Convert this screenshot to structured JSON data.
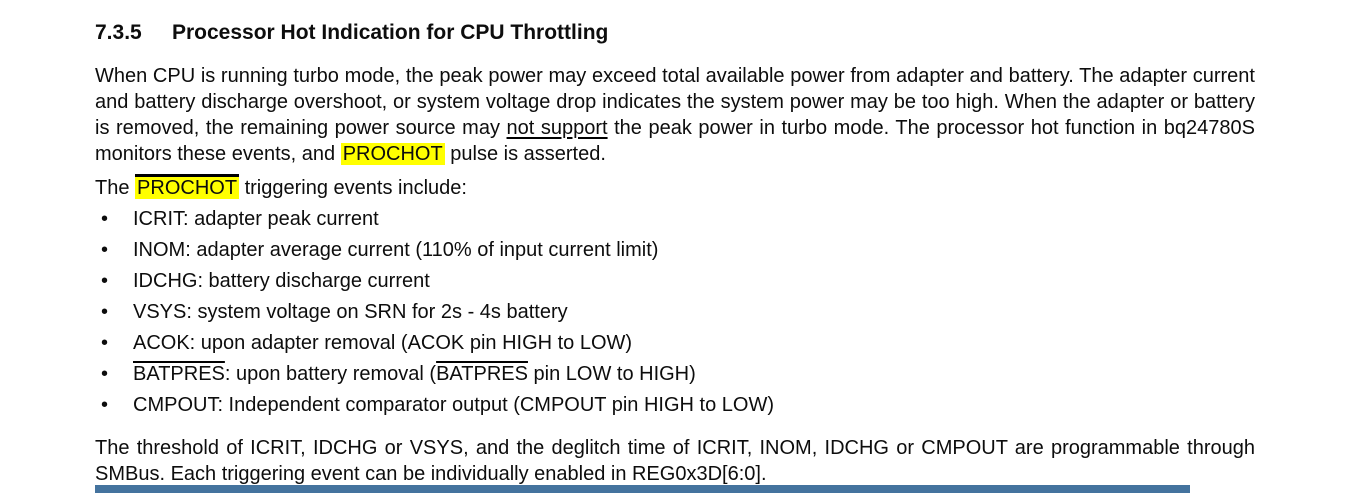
{
  "colors": {
    "highlight_yellow": "#ffff00",
    "footer_bar_blue": "#44739E",
    "text_black": "#0d0d0d"
  },
  "heading": {
    "number": "7.3.5",
    "title": "Processor Hot Indication for CPU Throttling"
  },
  "paragraph1": {
    "runs": [
      {
        "text": "When CPU is running turbo mode, the peak power may exceed total available power from adapter and battery. The adapter current and battery discharge overshoot, or system voltage drop indicates the system power may be too high. When the adapter or battery is removed, the remaining power source may "
      },
      {
        "text": "not support",
        "underline": true
      },
      {
        "text": " the peak power in turbo mode. The processor hot function in bq24780S monitors these events, and "
      },
      {
        "text": "PROCHOT",
        "highlight": true
      },
      {
        "text": " pulse is asserted."
      }
    ]
  },
  "intro": {
    "runs": [
      {
        "text": "The "
      },
      {
        "text": "PROCHOT",
        "highlight": true,
        "overline": true
      },
      {
        "text": " triggering events include:"
      }
    ]
  },
  "bullets": {
    "marker": "•",
    "items": [
      {
        "runs": [
          {
            "text": "ICRIT: adapter peak current"
          }
        ]
      },
      {
        "runs": [
          {
            "text": "INOM: adapter average current (110% of input current limit)"
          }
        ]
      },
      {
        "runs": [
          {
            "text": "IDCHG: battery discharge current"
          }
        ]
      },
      {
        "runs": [
          {
            "text": "VSYS: system voltage on SRN for 2s - 4s battery"
          }
        ]
      },
      {
        "runs": [
          {
            "text": "ACOK: upon adapter removal (ACOK pin HIGH to LOW)"
          }
        ]
      },
      {
        "runs": [
          {
            "text": "BATPRES",
            "overline": true
          },
          {
            "text": ": upon battery removal ("
          },
          {
            "text": "BATPRES",
            "overline": true
          },
          {
            "text": " pin LOW to HIGH)"
          }
        ]
      },
      {
        "runs": [
          {
            "text": "CMPOUT: Independent comparator output (CMPOUT pin HIGH to LOW)"
          }
        ]
      }
    ]
  },
  "paragraph2": {
    "runs": [
      {
        "text": "The threshold of ICRIT, IDCHG or VSYS, and the deglitch time of ICRIT, INOM, IDCHG or CMPOUT are programmable through SMBus. Each triggering event can be individually enabled in REG0x3D[6:0]."
      }
    ]
  }
}
